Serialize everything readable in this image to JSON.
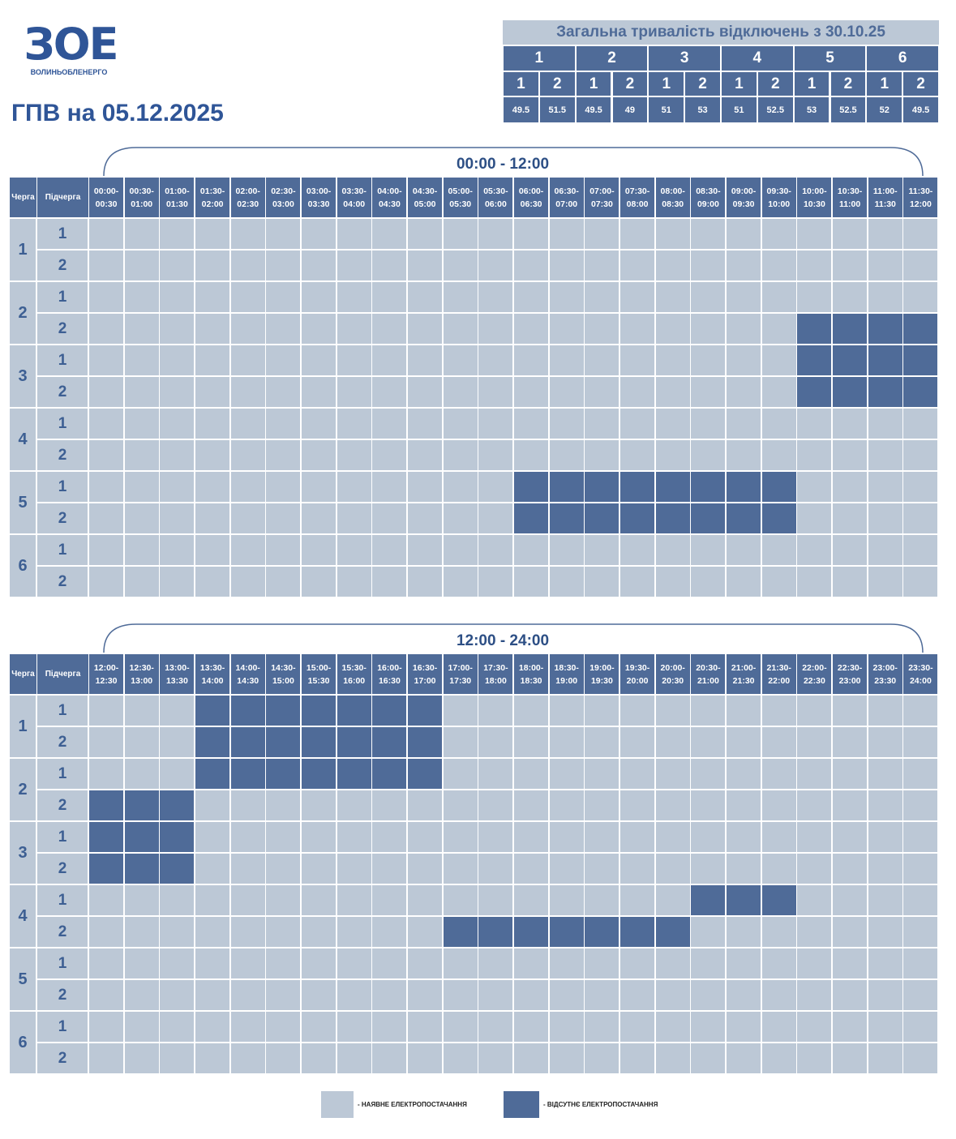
{
  "logo": {
    "symbol": "ЗОЕ",
    "name": "ВОЛИНЬОБЛЕНЕРГО"
  },
  "title": "ГПВ на 05.12.2025",
  "summary": {
    "title": "Загальна тривалість відключень з 30.10.25",
    "groups": [
      {
        "label": "1",
        "subgroups": [
          {
            "label": "1",
            "hours": 49.5
          },
          {
            "label": "2",
            "hours": 51.5
          }
        ]
      },
      {
        "label": "2",
        "subgroups": [
          {
            "label": "1",
            "hours": 49.5
          },
          {
            "label": "2",
            "hours": 49
          }
        ]
      },
      {
        "label": "3",
        "subgroups": [
          {
            "label": "1",
            "hours": 51
          },
          {
            "label": "2",
            "hours": 53
          }
        ]
      },
      {
        "label": "4",
        "subgroups": [
          {
            "label": "1",
            "hours": 51
          },
          {
            "label": "2",
            "hours": 52.5
          }
        ]
      },
      {
        "label": "5",
        "subgroups": [
          {
            "label": "1",
            "hours": 53
          },
          {
            "label": "2",
            "hours": 52.5
          }
        ]
      },
      {
        "label": "6",
        "subgroups": [
          {
            "label": "1",
            "hours": 52
          },
          {
            "label": "2",
            "hours": 49.5
          }
        ]
      }
    ]
  },
  "colors": {
    "available": "#bcc8d6",
    "outage": "#4f6b98"
  },
  "queue_header": "Черга",
  "subqueue_header": "Підчерга",
  "blocks": [
    {
      "period": "00:00 - 12:00",
      "slots": [
        "00:00- 00:30",
        "00:30- 01:00",
        "01:00- 01:30",
        "01:30- 02:00",
        "02:00- 02:30",
        "02:30- 03:00",
        "03:00- 03:30",
        "03:30- 04:00",
        "04:00- 04:30",
        "04:30- 05:00",
        "05:00- 05:30",
        "05:30- 06:00",
        "06:00- 06:30",
        "06:30- 07:00",
        "07:00- 07:30",
        "07:30- 08:00",
        "08:00- 08:30",
        "08:30- 09:00",
        "09:00- 09:30",
        "09:30- 10:00",
        "10:00- 10:30",
        "10:30- 11:00",
        "11:00- 11:30",
        "11:30- 12:00"
      ],
      "queues": [
        {
          "label": "1",
          "subqueues": [
            {
              "label": "1",
              "outage": [
                0,
                0,
                0,
                0,
                0,
                0,
                0,
                0,
                0,
                0,
                0,
                0,
                0,
                0,
                0,
                0,
                0,
                0,
                0,
                0,
                0,
                0,
                0,
                0
              ]
            },
            {
              "label": "2",
              "outage": [
                0,
                0,
                0,
                0,
                0,
                0,
                0,
                0,
                0,
                0,
                0,
                0,
                0,
                0,
                0,
                0,
                0,
                0,
                0,
                0,
                0,
                0,
                0,
                0
              ]
            }
          ]
        },
        {
          "label": "2",
          "subqueues": [
            {
              "label": "1",
              "outage": [
                0,
                0,
                0,
                0,
                0,
                0,
                0,
                0,
                0,
                0,
                0,
                0,
                0,
                0,
                0,
                0,
                0,
                0,
                0,
                0,
                0,
                0,
                0,
                0
              ]
            },
            {
              "label": "2",
              "outage": [
                0,
                0,
                0,
                0,
                0,
                0,
                0,
                0,
                0,
                0,
                0,
                0,
                0,
                0,
                0,
                0,
                0,
                0,
                0,
                0,
                1,
                1,
                1,
                1
              ]
            }
          ]
        },
        {
          "label": "3",
          "subqueues": [
            {
              "label": "1",
              "outage": [
                0,
                0,
                0,
                0,
                0,
                0,
                0,
                0,
                0,
                0,
                0,
                0,
                0,
                0,
                0,
                0,
                0,
                0,
                0,
                0,
                1,
                1,
                1,
                1
              ]
            },
            {
              "label": "2",
              "outage": [
                0,
                0,
                0,
                0,
                0,
                0,
                0,
                0,
                0,
                0,
                0,
                0,
                0,
                0,
                0,
                0,
                0,
                0,
                0,
                0,
                1,
                1,
                1,
                1
              ]
            }
          ]
        },
        {
          "label": "4",
          "subqueues": [
            {
              "label": "1",
              "outage": [
                0,
                0,
                0,
                0,
                0,
                0,
                0,
                0,
                0,
                0,
                0,
                0,
                0,
                0,
                0,
                0,
                0,
                0,
                0,
                0,
                0,
                0,
                0,
                0
              ]
            },
            {
              "label": "2",
              "outage": [
                0,
                0,
                0,
                0,
                0,
                0,
                0,
                0,
                0,
                0,
                0,
                0,
                0,
                0,
                0,
                0,
                0,
                0,
                0,
                0,
                0,
                0,
                0,
                0
              ]
            }
          ]
        },
        {
          "label": "5",
          "subqueues": [
            {
              "label": "1",
              "outage": [
                0,
                0,
                0,
                0,
                0,
                0,
                0,
                0,
                0,
                0,
                0,
                0,
                1,
                1,
                1,
                1,
                1,
                1,
                1,
                1,
                0,
                0,
                0,
                0
              ]
            },
            {
              "label": "2",
              "outage": [
                0,
                0,
                0,
                0,
                0,
                0,
                0,
                0,
                0,
                0,
                0,
                0,
                1,
                1,
                1,
                1,
                1,
                1,
                1,
                1,
                0,
                0,
                0,
                0
              ]
            }
          ]
        },
        {
          "label": "6",
          "subqueues": [
            {
              "label": "1",
              "outage": [
                0,
                0,
                0,
                0,
                0,
                0,
                0,
                0,
                0,
                0,
                0,
                0,
                0,
                0,
                0,
                0,
                0,
                0,
                0,
                0,
                0,
                0,
                0,
                0
              ]
            },
            {
              "label": "2",
              "outage": [
                0,
                0,
                0,
                0,
                0,
                0,
                0,
                0,
                0,
                0,
                0,
                0,
                0,
                0,
                0,
                0,
                0,
                0,
                0,
                0,
                0,
                0,
                0,
                0
              ]
            }
          ]
        }
      ]
    },
    {
      "period": "12:00 - 24:00",
      "slots": [
        "12:00- 12:30",
        "12:30- 13:00",
        "13:00- 13:30",
        "13:30- 14:00",
        "14:00- 14:30",
        "14:30- 15:00",
        "15:00- 15:30",
        "15:30- 16:00",
        "16:00- 16:30",
        "16:30- 17:00",
        "17:00- 17:30",
        "17:30- 18:00",
        "18:00- 18:30",
        "18:30- 19:00",
        "19:00- 19:30",
        "19:30- 20:00",
        "20:00- 20:30",
        "20:30- 21:00",
        "21:00- 21:30",
        "21:30- 22:00",
        "22:00- 22:30",
        "22:30- 23:00",
        "23:00- 23:30",
        "23:30- 24:00"
      ],
      "queues": [
        {
          "label": "1",
          "subqueues": [
            {
              "label": "1",
              "outage": [
                0,
                0,
                0,
                1,
                1,
                1,
                1,
                1,
                1,
                1,
                0,
                0,
                0,
                0,
                0,
                0,
                0,
                0,
                0,
                0,
                0,
                0,
                0,
                0
              ]
            },
            {
              "label": "2",
              "outage": [
                0,
                0,
                0,
                1,
                1,
                1,
                1,
                1,
                1,
                1,
                0,
                0,
                0,
                0,
                0,
                0,
                0,
                0,
                0,
                0,
                0,
                0,
                0,
                0
              ]
            }
          ]
        },
        {
          "label": "2",
          "subqueues": [
            {
              "label": "1",
              "outage": [
                0,
                0,
                0,
                1,
                1,
                1,
                1,
                1,
                1,
                1,
                0,
                0,
                0,
                0,
                0,
                0,
                0,
                0,
                0,
                0,
                0,
                0,
                0,
                0
              ]
            },
            {
              "label": "2",
              "outage": [
                1,
                1,
                1,
                0,
                0,
                0,
                0,
                0,
                0,
                0,
                0,
                0,
                0,
                0,
                0,
                0,
                0,
                0,
                0,
                0,
                0,
                0,
                0,
                0
              ]
            }
          ]
        },
        {
          "label": "3",
          "subqueues": [
            {
              "label": "1",
              "outage": [
                1,
                1,
                1,
                0,
                0,
                0,
                0,
                0,
                0,
                0,
                0,
                0,
                0,
                0,
                0,
                0,
                0,
                0,
                0,
                0,
                0,
                0,
                0,
                0
              ]
            },
            {
              "label": "2",
              "outage": [
                1,
                1,
                1,
                0,
                0,
                0,
                0,
                0,
                0,
                0,
                0,
                0,
                0,
                0,
                0,
                0,
                0,
                0,
                0,
                0,
                0,
                0,
                0,
                0
              ]
            }
          ]
        },
        {
          "label": "4",
          "subqueues": [
            {
              "label": "1",
              "outage": [
                0,
                0,
                0,
                0,
                0,
                0,
                0,
                0,
                0,
                0,
                0,
                0,
                0,
                0,
                0,
                0,
                0,
                1,
                1,
                1,
                0,
                0,
                0,
                0
              ]
            },
            {
              "label": "2",
              "outage": [
                0,
                0,
                0,
                0,
                0,
                0,
                0,
                0,
                0,
                0,
                1,
                1,
                1,
                1,
                1,
                1,
                1,
                0,
                0,
                0,
                0,
                0,
                0,
                0
              ]
            }
          ]
        },
        {
          "label": "5",
          "subqueues": [
            {
              "label": "1",
              "outage": [
                0,
                0,
                0,
                0,
                0,
                0,
                0,
                0,
                0,
                0,
                0,
                0,
                0,
                0,
                0,
                0,
                0,
                0,
                0,
                0,
                0,
                0,
                0,
                0
              ]
            },
            {
              "label": "2",
              "outage": [
                0,
                0,
                0,
                0,
                0,
                0,
                0,
                0,
                0,
                0,
                0,
                0,
                0,
                0,
                0,
                0,
                0,
                0,
                0,
                0,
                0,
                0,
                0,
                0
              ]
            }
          ]
        },
        {
          "label": "6",
          "subqueues": [
            {
              "label": "1",
              "outage": [
                0,
                0,
                0,
                0,
                0,
                0,
                0,
                0,
                0,
                0,
                0,
                0,
                0,
                0,
                0,
                0,
                0,
                0,
                0,
                0,
                0,
                0,
                0,
                0
              ]
            },
            {
              "label": "2",
              "outage": [
                0,
                0,
                0,
                0,
                0,
                0,
                0,
                0,
                0,
                0,
                0,
                0,
                0,
                0,
                0,
                0,
                0,
                0,
                0,
                0,
                0,
                0,
                0,
                0
              ]
            }
          ]
        }
      ]
    }
  ],
  "legend": {
    "available": "- НАЯВНЕ ЕЛЕКТРОПОСТАЧАННЯ",
    "outage": "- ВІДСУТНЄ ЕЛЕКТРОПОСТАЧАННЯ"
  }
}
